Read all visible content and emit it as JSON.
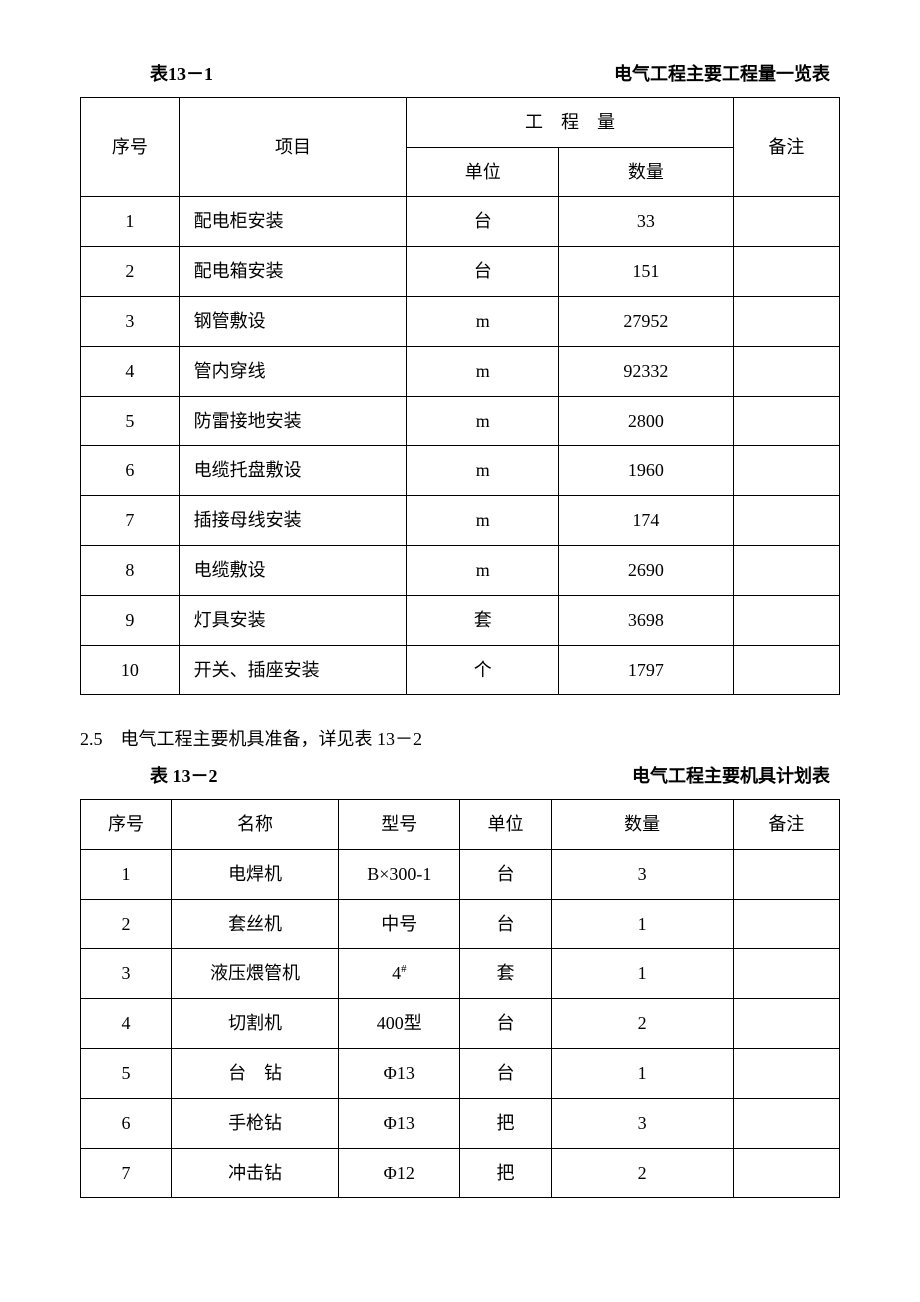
{
  "table1": {
    "label": "表13－1",
    "title": "电气工程主要工程量一览表",
    "headers": {
      "seq": "序号",
      "item": "项目",
      "qty_group": "工　程　量",
      "unit": "单位",
      "qty": "数量",
      "remark": "备注"
    },
    "rows": [
      {
        "seq": "1",
        "item": "配电柜安装",
        "unit": "台",
        "qty": "33",
        "remark": ""
      },
      {
        "seq": "2",
        "item": "配电箱安装",
        "unit": "台",
        "qty": "151",
        "remark": ""
      },
      {
        "seq": "3",
        "item": "钢管敷设",
        "unit": "m",
        "qty": "27952",
        "remark": ""
      },
      {
        "seq": "4",
        "item": "管内穿线",
        "unit": "m",
        "qty": "92332",
        "remark": ""
      },
      {
        "seq": "5",
        "item": "防雷接地安装",
        "unit": "m",
        "qty": "2800",
        "remark": ""
      },
      {
        "seq": "6",
        "item": "电缆托盘敷设",
        "unit": "m",
        "qty": "1960",
        "remark": ""
      },
      {
        "seq": "7",
        "item": "插接母线安装",
        "unit": "m",
        "qty": "174",
        "remark": ""
      },
      {
        "seq": "8",
        "item": "电缆敷设",
        "unit": "m",
        "qty": "2690",
        "remark": ""
      },
      {
        "seq": "9",
        "item": "灯具安装",
        "unit": "套",
        "qty": "3698",
        "remark": ""
      },
      {
        "seq": "10",
        "item": "开关、插座安装",
        "unit": "个",
        "qty": "1797",
        "remark": ""
      }
    ]
  },
  "section": {
    "text": "2.5　电气工程主要机具准备，详见表 13－2"
  },
  "table2": {
    "label": "表 13－2",
    "title": "电气工程主要机具计划表",
    "headers": {
      "seq": "序号",
      "name": "名称",
      "model": "型号",
      "unit": "单位",
      "qty": "数量",
      "remark": "备注"
    },
    "rows": [
      {
        "seq": "1",
        "name": "电焊机",
        "model": "B×300-1",
        "unit": "台",
        "qty": "3",
        "remark": ""
      },
      {
        "seq": "2",
        "name": "套丝机",
        "model": "中号",
        "unit": "台",
        "qty": "1",
        "remark": ""
      },
      {
        "seq": "3",
        "name": "液压煨管机",
        "model": "4#",
        "model_sup": true,
        "unit": "套",
        "qty": "1",
        "remark": ""
      },
      {
        "seq": "4",
        "name": "切割机",
        "model": "400型",
        "unit": "台",
        "qty": "2",
        "remark": ""
      },
      {
        "seq": "5",
        "name": "台　钻",
        "model": "Φ13",
        "unit": "台",
        "qty": "1",
        "remark": ""
      },
      {
        "seq": "6",
        "name": "手枪钻",
        "model": "Φ13",
        "unit": "把",
        "qty": "3",
        "remark": ""
      },
      {
        "seq": "7",
        "name": "冲击钻",
        "model": "Φ12",
        "unit": "把",
        "qty": "2",
        "remark": ""
      }
    ]
  },
  "style": {
    "font_family": "SimSun",
    "font_size_pt": 14,
    "text_color": "#000000",
    "background_color": "#ffffff",
    "border_color": "#000000"
  }
}
